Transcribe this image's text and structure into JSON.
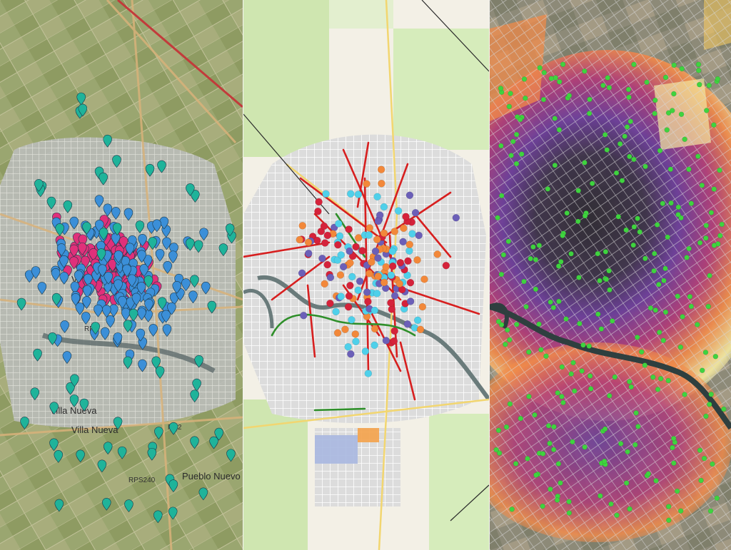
{
  "panels": [
    {
      "id": "satellite-pins",
      "labels": [
        "Villa Nueva",
        "Villa Nueva",
        "Pueblo Nuevo",
        "RP2",
        "RPS240",
        "RP3",
        "Villa"
      ]
    },
    {
      "id": "street-map-categories",
      "labels": []
    },
    {
      "id": "satellite-heatmap",
      "labels": []
    }
  ],
  "colors": {
    "pin_magenta": "#e0307a",
    "pin_blue": "#3b8fd8",
    "pin_teal": "#1fb39a",
    "dot_red": "#d5223a",
    "dot_orange": "#f2883a",
    "dot_purple": "#6b5fb8",
    "dot_cyan": "#4fd0ea",
    "line_red": "#d71f1f",
    "line_green": "#2f8f2a",
    "dot_green": "#3fd33f",
    "heat_dark": "#2a2630",
    "heat_purple": "#6a3a9a",
    "heat_magenta": "#b03a78",
    "heat_orange": "#f08a4a",
    "heat_yellow": "#f3e8a0",
    "river": "#2f3f3f"
  },
  "icons": [
    "map-pin-icon"
  ]
}
